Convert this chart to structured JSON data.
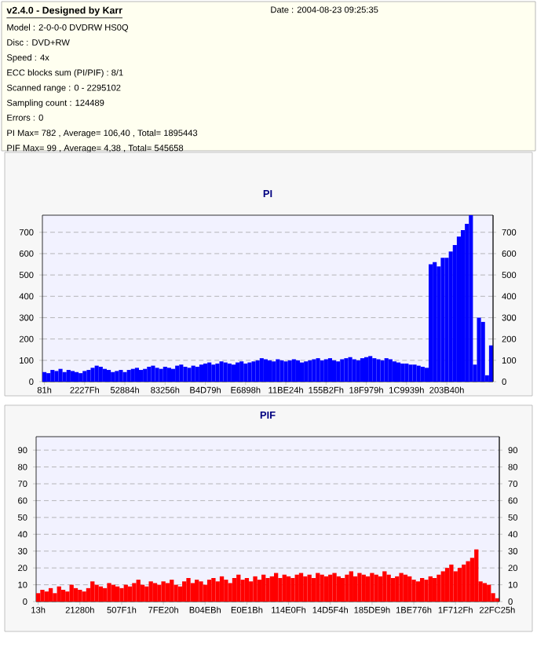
{
  "chart_data": [
    {
      "type": "other",
      "title": "v2.4.0 - Designed by Karr",
      "annotations": [
        "Date : 2004-08-23 09:25:35",
        "Model : 2-0-0-0 DVDRW HS0Q",
        "Disc : DVD+RW",
        "Speed : 4x",
        "ECC blocks sum (PI/PIF) : 8/1",
        "Scanned range : 0 - 2295102",
        "Sampling count : 124489",
        "Errors : 0",
        "PI Max= 782 , Average= 106,40 , Total= 1895443",
        "PIF Max= 99 , Average= 4,38 , Total= 545658"
      ]
    },
    {
      "type": "bar",
      "title": "PI",
      "color": "#0000ff",
      "grid": "y",
      "categories": [
        "81h",
        null,
        null,
        null,
        null,
        null,
        null,
        null,
        null,
        null,
        "2227Fh",
        null,
        null,
        null,
        null,
        null,
        null,
        null,
        null,
        null,
        "52884h",
        null,
        null,
        null,
        null,
        null,
        null,
        null,
        null,
        null,
        "83256h",
        null,
        null,
        null,
        null,
        null,
        null,
        null,
        null,
        null,
        "B4D79h",
        null,
        null,
        null,
        null,
        null,
        null,
        null,
        null,
        null,
        "E6898h",
        null,
        null,
        null,
        null,
        null,
        null,
        null,
        null,
        null,
        "11BE24h",
        null,
        null,
        null,
        null,
        null,
        null,
        null,
        null,
        null,
        "155B2Fh",
        null,
        null,
        null,
        null,
        null,
        null,
        null,
        null,
        null,
        "18F979h",
        null,
        null,
        null,
        null,
        null,
        null,
        null,
        null,
        null,
        "1C9939h",
        null,
        null,
        null,
        null,
        null,
        null,
        null,
        null,
        null,
        "203B40h",
        null,
        null,
        null,
        null,
        null,
        null,
        null,
        null,
        null,
        null,
        null
      ],
      "values": [
        45,
        40,
        55,
        50,
        60,
        45,
        55,
        50,
        45,
        40,
        50,
        55,
        65,
        75,
        70,
        60,
        55,
        45,
        50,
        55,
        45,
        55,
        60,
        65,
        55,
        60,
        70,
        75,
        65,
        60,
        70,
        65,
        60,
        75,
        80,
        70,
        65,
        75,
        70,
        80,
        85,
        90,
        80,
        85,
        95,
        90,
        85,
        80,
        90,
        95,
        85,
        90,
        95,
        100,
        110,
        105,
        100,
        95,
        105,
        100,
        95,
        100,
        105,
        100,
        90,
        95,
        100,
        105,
        110,
        100,
        105,
        110,
        100,
        95,
        105,
        110,
        115,
        105,
        100,
        110,
        115,
        120,
        110,
        105,
        100,
        110,
        105,
        95,
        90,
        85,
        85,
        80,
        80,
        75,
        70,
        65,
        550,
        560,
        540,
        580,
        580,
        610,
        640,
        680,
        710,
        740,
        780,
        80,
        300,
        280,
        30,
        170
      ],
      "ylim": [
        0,
        780
      ],
      "yticks": [
        0,
        100,
        200,
        300,
        400,
        500,
        600,
        700
      ],
      "y2lim": [
        0,
        780
      ],
      "y2ticks": [
        0,
        100,
        200,
        300,
        400,
        500,
        600,
        700
      ]
    },
    {
      "type": "bar",
      "title": "PIF",
      "color": "#ff0000",
      "grid": "y",
      "categories": [
        "13h",
        null,
        null,
        null,
        null,
        null,
        null,
        null,
        null,
        null,
        "21280h",
        null,
        null,
        null,
        null,
        null,
        null,
        null,
        null,
        null,
        "507F1h",
        null,
        null,
        null,
        null,
        null,
        null,
        null,
        null,
        null,
        "7FE20h",
        null,
        null,
        null,
        null,
        null,
        null,
        null,
        null,
        null,
        "B04EBh",
        null,
        null,
        null,
        null,
        null,
        null,
        null,
        null,
        null,
        "E0E1Bh",
        null,
        null,
        null,
        null,
        null,
        null,
        null,
        null,
        null,
        "114E0Fh",
        null,
        null,
        null,
        null,
        null,
        null,
        null,
        null,
        null,
        "14D5F4h",
        null,
        null,
        null,
        null,
        null,
        null,
        null,
        null,
        null,
        "185DE9h",
        null,
        null,
        null,
        null,
        null,
        null,
        null,
        null,
        null,
        "1BE776h",
        null,
        null,
        null,
        null,
        null,
        null,
        null,
        null,
        null,
        "1F712Fh",
        null,
        null,
        null,
        null,
        null,
        null,
        null,
        null,
        null,
        "22FC25h"
      ],
      "values": [
        5,
        7,
        6,
        8,
        5,
        9,
        7,
        6,
        10,
        8,
        7,
        6,
        8,
        12,
        10,
        9,
        8,
        11,
        10,
        9,
        8,
        10,
        9,
        11,
        13,
        10,
        9,
        12,
        11,
        10,
        12,
        11,
        13,
        10,
        9,
        12,
        14,
        11,
        13,
        12,
        10,
        13,
        14,
        12,
        15,
        13,
        11,
        14,
        16,
        13,
        14,
        12,
        15,
        13,
        16,
        14,
        15,
        17,
        14,
        16,
        15,
        14,
        16,
        17,
        15,
        16,
        14,
        17,
        16,
        15,
        16,
        17,
        15,
        14,
        16,
        18,
        15,
        17,
        16,
        15,
        17,
        16,
        15,
        18,
        16,
        14,
        15,
        17,
        16,
        15,
        13,
        12,
        14,
        13,
        15,
        14,
        16,
        18,
        20,
        22,
        18,
        20,
        22,
        24,
        26,
        31,
        12,
        11,
        10,
        5,
        2
      ],
      "ylim": [
        0,
        98
      ],
      "yticks": [
        0,
        10,
        20,
        30,
        40,
        50,
        60,
        70,
        80,
        90
      ],
      "y2lim": [
        0,
        98
      ],
      "y2ticks": [
        0,
        10,
        20,
        30,
        40,
        50,
        60,
        70,
        80,
        90
      ]
    }
  ]
}
